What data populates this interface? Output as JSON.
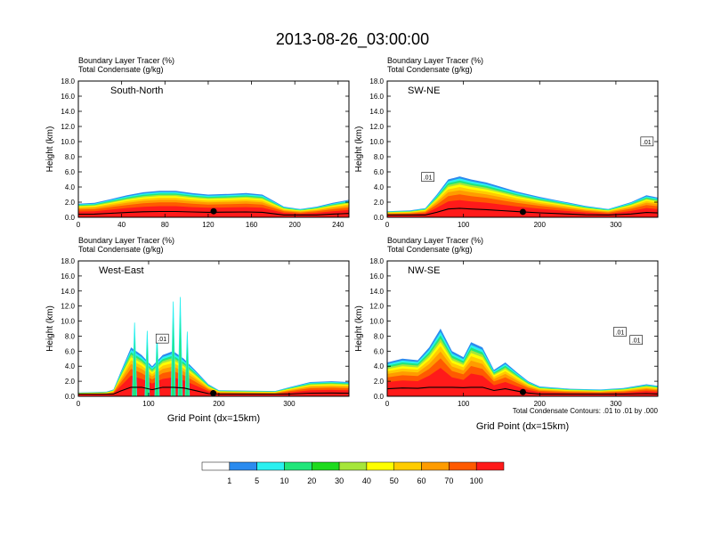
{
  "figure": {
    "title": "2013-08-26_03:00:00",
    "footnote": "Total Condensate Contours: .01 to .01 by .000"
  },
  "chart_data": [
    {
      "type": "heatmap",
      "panel": "South-North",
      "header_lines": [
        "Boundary Layer Tracer    (%)",
        "Total Condensate    (g/kg)"
      ],
      "ylabel": "Height (km)",
      "xlabel": "",
      "xlim": [
        0,
        250
      ],
      "ylim": [
        0,
        18
      ],
      "xticks": [
        0,
        40,
        80,
        120,
        160,
        200,
        240
      ],
      "yticks": [
        0.0,
        2.0,
        4.0,
        6.0,
        8.0,
        10.0,
        12.0,
        14.0,
        16.0,
        18.0
      ],
      "marker_x": 125,
      "contour_labels": [],
      "profile": [
        [
          0,
          1.8
        ],
        [
          15,
          1.9
        ],
        [
          30,
          2.4
        ],
        [
          45,
          2.9
        ],
        [
          60,
          3.3
        ],
        [
          75,
          3.5
        ],
        [
          90,
          3.5
        ],
        [
          105,
          3.2
        ],
        [
          120,
          3.0
        ],
        [
          140,
          3.1
        ],
        [
          155,
          3.2
        ],
        [
          170,
          3.0
        ],
        [
          180,
          2.2
        ],
        [
          190,
          1.4
        ],
        [
          205,
          1.1
        ],
        [
          220,
          1.4
        ],
        [
          235,
          1.9
        ],
        [
          250,
          2.3
        ]
      ]
    },
    {
      "type": "heatmap",
      "panel": "SW-NE",
      "header_lines": [
        "Boundary Layer Tracer    (%)",
        "Total Condensate    (g/kg)"
      ],
      "ylabel": "Height (km)",
      "xlabel": "",
      "xlim": [
        0,
        355
      ],
      "ylim": [
        0,
        18
      ],
      "xticks": [
        0,
        100,
        200,
        300
      ],
      "yticks": [
        0.0,
        2.0,
        4.0,
        6.0,
        8.0,
        10.0,
        12.0,
        14.0,
        16.0,
        18.0
      ],
      "marker_x": 178,
      "contour_labels": [
        ".01",
        ".01"
      ],
      "profile": [
        [
          0,
          0.8
        ],
        [
          30,
          0.9
        ],
        [
          50,
          1.2
        ],
        [
          65,
          3.0
        ],
        [
          80,
          5.0
        ],
        [
          95,
          5.4
        ],
        [
          110,
          5.0
        ],
        [
          130,
          4.6
        ],
        [
          150,
          4.0
        ],
        [
          170,
          3.4
        ],
        [
          200,
          2.7
        ],
        [
          230,
          2.1
        ],
        [
          260,
          1.5
        ],
        [
          290,
          1.1
        ],
        [
          320,
          2.0
        ],
        [
          340,
          2.9
        ],
        [
          355,
          2.6
        ]
      ]
    },
    {
      "type": "heatmap",
      "panel": "West-East",
      "header_lines": [
        "Boundary Layer Tracer    (%)",
        "Total Condensate    (g/kg)"
      ],
      "ylabel": "Height (km)",
      "xlabel": "Grid Point (dx=15km)",
      "xlim": [
        0,
        385
      ],
      "ylim": [
        0,
        18
      ],
      "xticks": [
        0,
        100,
        200,
        300
      ],
      "yticks": [
        0.0,
        2.0,
        4.0,
        6.0,
        8.0,
        10.0,
        12.0,
        14.0,
        16.0,
        18.0
      ],
      "marker_x": 192,
      "contour_labels": [
        ".01"
      ],
      "profile": [
        [
          0,
          0.5
        ],
        [
          40,
          0.6
        ],
        [
          50,
          0.9
        ],
        [
          60,
          3.2
        ],
        [
          75,
          6.5
        ],
        [
          90,
          5.5
        ],
        [
          105,
          4.0
        ],
        [
          120,
          5.5
        ],
        [
          135,
          6.0
        ],
        [
          150,
          5.0
        ],
        [
          165,
          3.6
        ],
        [
          185,
          1.6
        ],
        [
          200,
          0.8
        ],
        [
          280,
          0.7
        ],
        [
          300,
          1.2
        ],
        [
          330,
          1.9
        ],
        [
          360,
          2.0
        ],
        [
          385,
          1.9
        ]
      ],
      "towers": [
        [
          80,
          9.8
        ],
        [
          98,
          8.7
        ],
        [
          112,
          8.3
        ],
        [
          135,
          12.6
        ],
        [
          145,
          13.2
        ],
        [
          155,
          8.6
        ]
      ]
    },
    {
      "type": "heatmap",
      "panel": "NW-SE",
      "header_lines": [
        "Boundary Layer Tracer    (%)",
        "Total Condensate    (g/kg)"
      ],
      "ylabel": "Height (km)",
      "xlabel": "Grid Point (dx=15km)",
      "xlim": [
        0,
        355
      ],
      "ylim": [
        0,
        18
      ],
      "xticks": [
        0,
        100,
        200,
        300
      ],
      "yticks": [
        0.0,
        2.0,
        4.0,
        6.0,
        8.0,
        10.0,
        12.0,
        14.0,
        16.0,
        18.0
      ],
      "marker_x": 178,
      "contour_labels": [
        ".01",
        ".01"
      ],
      "profile": [
        [
          0,
          4.5
        ],
        [
          20,
          5.0
        ],
        [
          40,
          4.8
        ],
        [
          55,
          6.5
        ],
        [
          70,
          9.0
        ],
        [
          85,
          6.0
        ],
        [
          100,
          5.2
        ],
        [
          110,
          7.2
        ],
        [
          125,
          6.5
        ],
        [
          140,
          3.5
        ],
        [
          155,
          4.5
        ],
        [
          170,
          3.2
        ],
        [
          185,
          2.0
        ],
        [
          200,
          1.3
        ],
        [
          240,
          1.0
        ],
        [
          280,
          0.9
        ],
        [
          310,
          1.1
        ],
        [
          340,
          1.6
        ],
        [
          355,
          1.4
        ]
      ]
    }
  ],
  "colorbar": {
    "labels": [
      "1",
      "5",
      "10",
      "20",
      "30",
      "40",
      "50",
      "60",
      "70",
      "100"
    ],
    "colors": [
      "#ffffff",
      "#2b8bef",
      "#2af0f0",
      "#21e67a",
      "#1edb1e",
      "#a6e63a",
      "#ffff00",
      "#ffcc00",
      "#ff9c00",
      "#ff5a00",
      "#ff1a1a"
    ]
  }
}
